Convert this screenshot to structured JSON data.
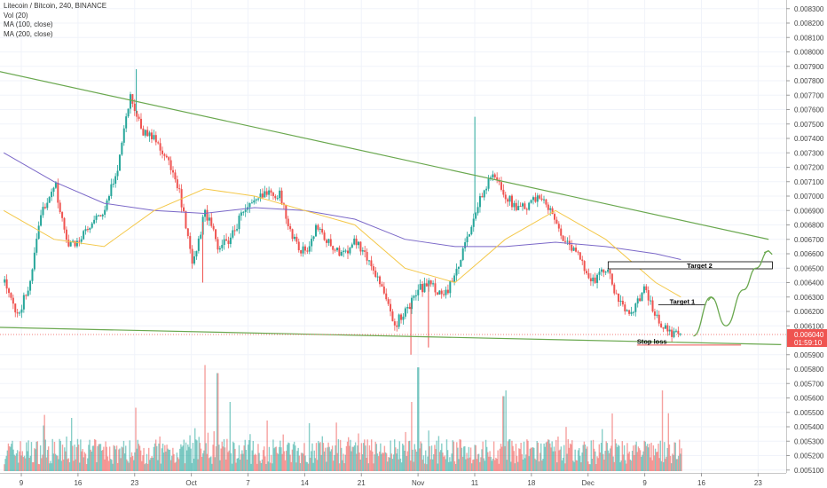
{
  "legend": {
    "title": "Litecoin / Bitcoin, 240, BINANCE",
    "vol": "Vol (20)",
    "ma100": "MA (100, close)",
    "ma200": "MA (200, close)"
  },
  "price_axis": {
    "ticks": [
      "0.008300",
      "0.008200",
      "0.008100",
      "0.008000",
      "0.007900",
      "0.007800",
      "0.007700",
      "0.007600",
      "0.007500",
      "0.007400",
      "0.007300",
      "0.007200",
      "0.007100",
      "0.007000",
      "0.006900",
      "0.006800",
      "0.006700",
      "0.006600",
      "0.006500",
      "0.006400",
      "0.006300",
      "0.006200",
      "0.006100",
      "0.005900",
      "0.005800",
      "0.005700",
      "0.005600",
      "0.005500",
      "0.005400",
      "0.005300",
      "0.005200",
      "0.005100"
    ],
    "current_price": "0.006040",
    "countdown": "01:59:10"
  },
  "time_axis": {
    "labels": [
      "9",
      "16",
      "23",
      "Oct",
      "7",
      "14",
      "21",
      "Nov",
      "11",
      "18",
      "Dec",
      "9",
      "16",
      "23"
    ]
  },
  "annotations": {
    "target2": "Target 2",
    "target1": "Target 1",
    "stop_loss": "Stop loss"
  },
  "colors": {
    "up": "#26a69a",
    "down": "#ef5350",
    "ma100": "#f4c84a",
    "ma200": "#7b68c8",
    "trendline": "#6aa84f",
    "price_label_bg": "#ef5350"
  },
  "chart_data": {
    "type": "candlestick",
    "y_range": [
      0.00508,
      0.00836
    ],
    "close_path": [
      {
        "t": 0,
        "p": 0.0064
      },
      {
        "t": 1,
        "p": 0.00615
      },
      {
        "t": 2,
        "p": 0.0064
      },
      {
        "t": 3,
        "p": 0.0069
      },
      {
        "t": 4,
        "p": 0.0071
      },
      {
        "t": 5,
        "p": 0.00665
      },
      {
        "t": 6,
        "p": 0.0067
      },
      {
        "t": 7,
        "p": 0.0068
      },
      {
        "t": 8,
        "p": 0.0069
      },
      {
        "t": 9,
        "p": 0.0072
      },
      {
        "t": 10,
        "p": 0.0077
      },
      {
        "t": 11,
        "p": 0.00745
      },
      {
        "t": 12,
        "p": 0.0074
      },
      {
        "t": 13,
        "p": 0.00725
      },
      {
        "t": 14,
        "p": 0.007
      },
      {
        "t": 15,
        "p": 0.0065
      },
      {
        "t": 16,
        "p": 0.0069
      },
      {
        "t": 17,
        "p": 0.00665
      },
      {
        "t": 18,
        "p": 0.0067
      },
      {
        "t": 19,
        "p": 0.0069
      },
      {
        "t": 20,
        "p": 0.00695
      },
      {
        "t": 21,
        "p": 0.00705
      },
      {
        "t": 22,
        "p": 0.007
      },
      {
        "t": 23,
        "p": 0.0067
      },
      {
        "t": 24,
        "p": 0.0066
      },
      {
        "t": 25,
        "p": 0.0068
      },
      {
        "t": 26,
        "p": 0.00665
      },
      {
        "t": 27,
        "p": 0.0066
      },
      {
        "t": 28,
        "p": 0.0067
      },
      {
        "t": 29,
        "p": 0.00655
      },
      {
        "t": 30,
        "p": 0.0064
      },
      {
        "t": 31,
        "p": 0.0061
      },
      {
        "t": 32,
        "p": 0.0062
      },
      {
        "t": 33,
        "p": 0.00635
      },
      {
        "t": 34,
        "p": 0.0064
      },
      {
        "t": 35,
        "p": 0.0063
      },
      {
        "t": 36,
        "p": 0.00645
      },
      {
        "t": 37,
        "p": 0.00675
      },
      {
        "t": 38,
        "p": 0.007
      },
      {
        "t": 39,
        "p": 0.00715
      },
      {
        "t": 40,
        "p": 0.007
      },
      {
        "t": 41,
        "p": 0.0069
      },
      {
        "t": 42,
        "p": 0.00695
      },
      {
        "t": 43,
        "p": 0.007
      },
      {
        "t": 44,
        "p": 0.0068
      },
      {
        "t": 45,
        "p": 0.00665
      },
      {
        "t": 46,
        "p": 0.00655
      },
      {
        "t": 47,
        "p": 0.0064
      },
      {
        "t": 48,
        "p": 0.0065
      },
      {
        "t": 49,
        "p": 0.00625
      },
      {
        "t": 50,
        "p": 0.0062
      },
      {
        "t": 51,
        "p": 0.00635
      },
      {
        "t": 52,
        "p": 0.00615
      },
      {
        "t": 53,
        "p": 0.00605
      },
      {
        "t": 54,
        "p": 0.00604
      }
    ],
    "ma100_path": [
      {
        "t": 0,
        "p": 0.0069
      },
      {
        "t": 4,
        "p": 0.0067
      },
      {
        "t": 8,
        "p": 0.00665
      },
      {
        "t": 12,
        "p": 0.0069
      },
      {
        "t": 16,
        "p": 0.00705
      },
      {
        "t": 20,
        "p": 0.007
      },
      {
        "t": 24,
        "p": 0.0069
      },
      {
        "t": 28,
        "p": 0.0068
      },
      {
        "t": 32,
        "p": 0.0065
      },
      {
        "t": 36,
        "p": 0.0064
      },
      {
        "t": 40,
        "p": 0.0067
      },
      {
        "t": 44,
        "p": 0.0069
      },
      {
        "t": 48,
        "p": 0.0067
      },
      {
        "t": 52,
        "p": 0.0064
      },
      {
        "t": 54,
        "p": 0.0063
      }
    ],
    "ma200_path": [
      {
        "t": 0,
        "p": 0.0073
      },
      {
        "t": 4,
        "p": 0.0071
      },
      {
        "t": 8,
        "p": 0.00695
      },
      {
        "t": 12,
        "p": 0.0069
      },
      {
        "t": 16,
        "p": 0.00688
      },
      {
        "t": 20,
        "p": 0.00692
      },
      {
        "t": 24,
        "p": 0.0069
      },
      {
        "t": 28,
        "p": 0.00684
      },
      {
        "t": 32,
        "p": 0.0067
      },
      {
        "t": 36,
        "p": 0.00665
      },
      {
        "t": 40,
        "p": 0.00665
      },
      {
        "t": 44,
        "p": 0.00668
      },
      {
        "t": 48,
        "p": 0.00665
      },
      {
        "t": 52,
        "p": 0.0066
      },
      {
        "t": 54,
        "p": 0.00656
      }
    ],
    "upper_trendline": [
      {
        "t": -1.2,
        "p": 0.00788
      },
      {
        "t": 61,
        "p": 0.0067
      }
    ],
    "lower_trendline": [
      {
        "t": -0.8,
        "p": 0.00609
      },
      {
        "t": 62,
        "p": 0.00597
      }
    ],
    "target2_level": 0.00652,
    "target1_level": 0.00627,
    "stop_loss_level": 0.00597,
    "projection_path": [
      {
        "t": 55,
        "p": 0.00603
      },
      {
        "t": 56.4,
        "p": 0.0063
      },
      {
        "t": 57.6,
        "p": 0.0061
      },
      {
        "t": 59,
        "p": 0.00635
      },
      {
        "t": 60,
        "p": 0.0065
      },
      {
        "t": 61,
        "p": 0.00662
      }
    ],
    "volume_spikes": [
      {
        "t": 10.5,
        "v": 0.55
      },
      {
        "t": 16.0,
        "v": 0.92
      },
      {
        "t": 17.0,
        "v": 0.85
      },
      {
        "t": 18.0,
        "v": 0.6
      },
      {
        "t": 32.5,
        "v": 0.6
      },
      {
        "t": 33.0,
        "v": 0.9
      },
      {
        "t": 39.8,
        "v": 0.65
      },
      {
        "t": 40.0,
        "v": 0.7
      },
      {
        "t": 48.5,
        "v": 0.5
      },
      {
        "t": 52.5,
        "v": 0.7
      }
    ]
  }
}
